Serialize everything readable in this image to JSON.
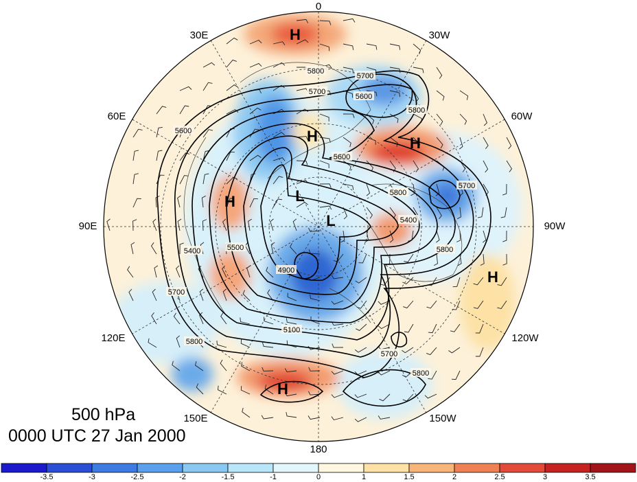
{
  "title": {
    "level": "500 hPa",
    "datetime": "0000 UTC 27 Jan 2000"
  },
  "longitude_labels": [
    {
      "key": "lon-0",
      "text": "0"
    },
    {
      "key": "lon-30w",
      "text": "30W"
    },
    {
      "key": "lon-60w",
      "text": "60W"
    },
    {
      "key": "lon-90w",
      "text": "90W"
    },
    {
      "key": "lon-120w",
      "text": "120W"
    },
    {
      "key": "lon-150w",
      "text": "150W"
    },
    {
      "key": "lon-180",
      "text": "180"
    },
    {
      "key": "lon-150e",
      "text": "150E"
    },
    {
      "key": "lon-120e",
      "text": "120E"
    },
    {
      "key": "lon-90e",
      "text": "90E"
    },
    {
      "key": "lon-60e",
      "text": "60E"
    },
    {
      "key": "lon-30e",
      "text": "30E"
    }
  ],
  "pressure_centers": [
    {
      "type": "H"
    },
    {
      "type": "H"
    },
    {
      "type": "H"
    },
    {
      "type": "H"
    },
    {
      "type": "H"
    },
    {
      "type": "H"
    },
    {
      "type": "L"
    },
    {
      "type": "L"
    }
  ],
  "contour_labels": [
    "5800",
    "5700",
    "5700",
    "5600",
    "5600",
    "5800",
    "5700",
    "5800",
    "5600",
    "5400",
    "5400",
    "5500",
    "4900",
    "5100",
    "5700",
    "5800",
    "5800",
    "5700",
    "5800"
  ],
  "colorbar": {
    "colors": [
      "#1a1acc",
      "#2a4fd6",
      "#3d7be3",
      "#5aa0ec",
      "#88c8f2",
      "#b9e6f8",
      "#e2f6fb",
      "#fff7e0",
      "#fde1a5",
      "#f7b57a",
      "#ef8254",
      "#e24b3a",
      "#c52322",
      "#a0141a"
    ],
    "tick_labels": [
      "-3.5",
      "-3",
      "-2.5",
      "-2",
      "-1.5",
      "-1",
      "0",
      "1",
      "1.5",
      "2",
      "2.5",
      "3",
      "3.5"
    ]
  }
}
